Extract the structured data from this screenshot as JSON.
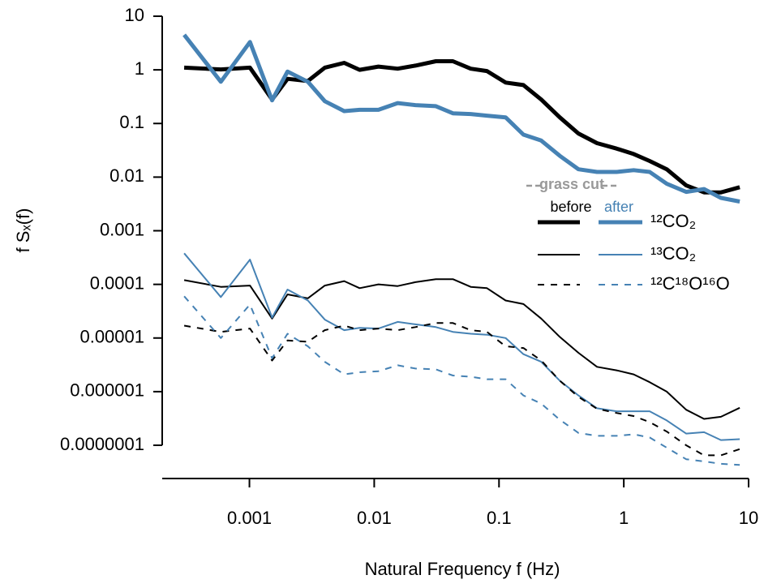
{
  "chart_data": {
    "type": "line",
    "x_label": "Natural Frequency f (Hz)",
    "y_label": "f Sₓ(f)",
    "log_x": true,
    "log_y": true,
    "xlim": [
      0.0002,
      10
    ],
    "ylim": [
      2.4e-08,
      10
    ],
    "xticks": [
      0.001,
      0.01,
      0.1,
      1,
      10
    ],
    "yticks": [
      10,
      1,
      0.1,
      0.01,
      0.001,
      0.0001,
      1e-05,
      1e-06,
      {
        "value": 1e-07,
        "label": "0.0000001"
      }
    ],
    "legend_title": "grass cut",
    "groups": [
      "before",
      "after"
    ],
    "x": [
      0.0003,
      0.00059,
      0.00101,
      0.00152,
      0.00202,
      0.00294,
      0.00402,
      0.00575,
      0.00764,
      0.0108,
      0.0154,
      0.0214,
      0.0312,
      0.0427,
      0.0593,
      0.08,
      0.113,
      0.157,
      0.218,
      0.307,
      0.433,
      0.61,
      0.875,
      1.2,
      1.61,
      2.21,
      3.16,
      4.4,
      6.0,
      8.5
    ],
    "series": [
      {
        "name": "¹²CO₂",
        "line_width": 5,
        "dash": "none",
        "by_group": [
          {
            "color": "#000000",
            "values": [
              1.1,
              1.02,
              1.1,
              0.28,
              0.68,
              0.62,
              1.1,
              1.35,
              1.0,
              1.15,
              1.05,
              1.2,
              1.45,
              1.45,
              1.05,
              0.95,
              0.58,
              0.52,
              0.28,
              0.13,
              0.065,
              0.043,
              0.034,
              0.027,
              0.02,
              0.014,
              0.007,
              0.0052,
              0.0052,
              0.0065
            ]
          },
          {
            "color": "#4682b4",
            "values": [
              4.5,
              0.6,
              3.3,
              0.27,
              0.93,
              0.6,
              0.26,
              0.17,
              0.18,
              0.18,
              0.24,
              0.22,
              0.21,
              0.155,
              0.15,
              0.14,
              0.13,
              0.062,
              0.048,
              0.025,
              0.014,
              0.0125,
              0.0125,
              0.0135,
              0.0125,
              0.0075,
              0.0053,
              0.006,
              0.0041,
              0.0035
            ]
          }
        ]
      },
      {
        "name": "¹³CO₂",
        "line_width": 2,
        "dash": "none",
        "by_group": [
          {
            "color": "#000000",
            "values": [
              0.00012,
              9e-05,
              9.5e-05,
              2.3e-05,
              6.5e-05,
              5.5e-05,
              9.5e-05,
              0.000115,
              8.5e-05,
              0.0001,
              9.3e-05,
              0.00011,
              0.000125,
              0.000125,
              9e-05,
              8.5e-05,
              5e-05,
              4.3e-05,
              2.3e-05,
              1.05e-05,
              5.3e-06,
              2.9e-06,
              2.5e-06,
              2.1e-06,
              1.5e-06,
              1e-06,
              4.6e-07,
              3.1e-07,
              3.4e-07,
              5e-07
            ]
          },
          {
            "color": "#4682b4",
            "values": [
              0.00038,
              5.8e-05,
              0.00029,
              2.4e-05,
              8e-05,
              5e-05,
              2.2e-05,
              1.4e-05,
              1.55e-05,
              1.5e-05,
              2e-05,
              1.8e-05,
              1.6e-05,
              1.3e-05,
              1.2e-05,
              1.15e-05,
              1e-05,
              5e-06,
              3.6e-06,
              1.6e-06,
              8.5e-07,
              4.9e-07,
              4.3e-07,
              4.3e-07,
              4.3e-07,
              2.9e-07,
              1.65e-07,
              1.75e-07,
              1.25e-07,
              1.3e-07
            ]
          }
        ]
      },
      {
        "name": "¹²C¹⁸O¹⁶O",
        "line_width": 2,
        "dash": "8,8",
        "by_group": [
          {
            "color": "#000000",
            "values": [
              1.7e-05,
              1.3e-05,
              1.5e-05,
              3.8e-06,
              9e-06,
              8.5e-06,
              1.4e-05,
              1.7e-05,
              1.4e-05,
              1.5e-05,
              1.4e-05,
              1.6e-05,
              1.9e-05,
              1.9e-05,
              1.4e-05,
              1.3e-05,
              7e-06,
              6.5e-06,
              3.8e-06,
              1.6e-06,
              8e-07,
              4.8e-07,
              4e-07,
              3.5e-07,
              2.7e-07,
              1.8e-07,
              1e-07,
              6.5e-08,
              6.5e-08,
              8.5e-08
            ]
          },
          {
            "color": "#4682b4",
            "values": [
              6e-05,
              1e-05,
              4.2e-05,
              4.2e-06,
              1.2e-05,
              7e-06,
              3.6e-06,
              2.1e-06,
              2.3e-06,
              2.4e-06,
              3.1e-06,
              2.7e-06,
              2.6e-06,
              2e-06,
              1.9e-06,
              1.7e-06,
              1.7e-06,
              8.5e-07,
              6e-07,
              3e-07,
              1.7e-07,
              1.5e-07,
              1.5e-07,
              1.6e-07,
              1.4e-07,
              9e-08,
              5.5e-08,
              5e-08,
              4.5e-08,
              4.3e-08
            ]
          }
        ]
      }
    ]
  }
}
